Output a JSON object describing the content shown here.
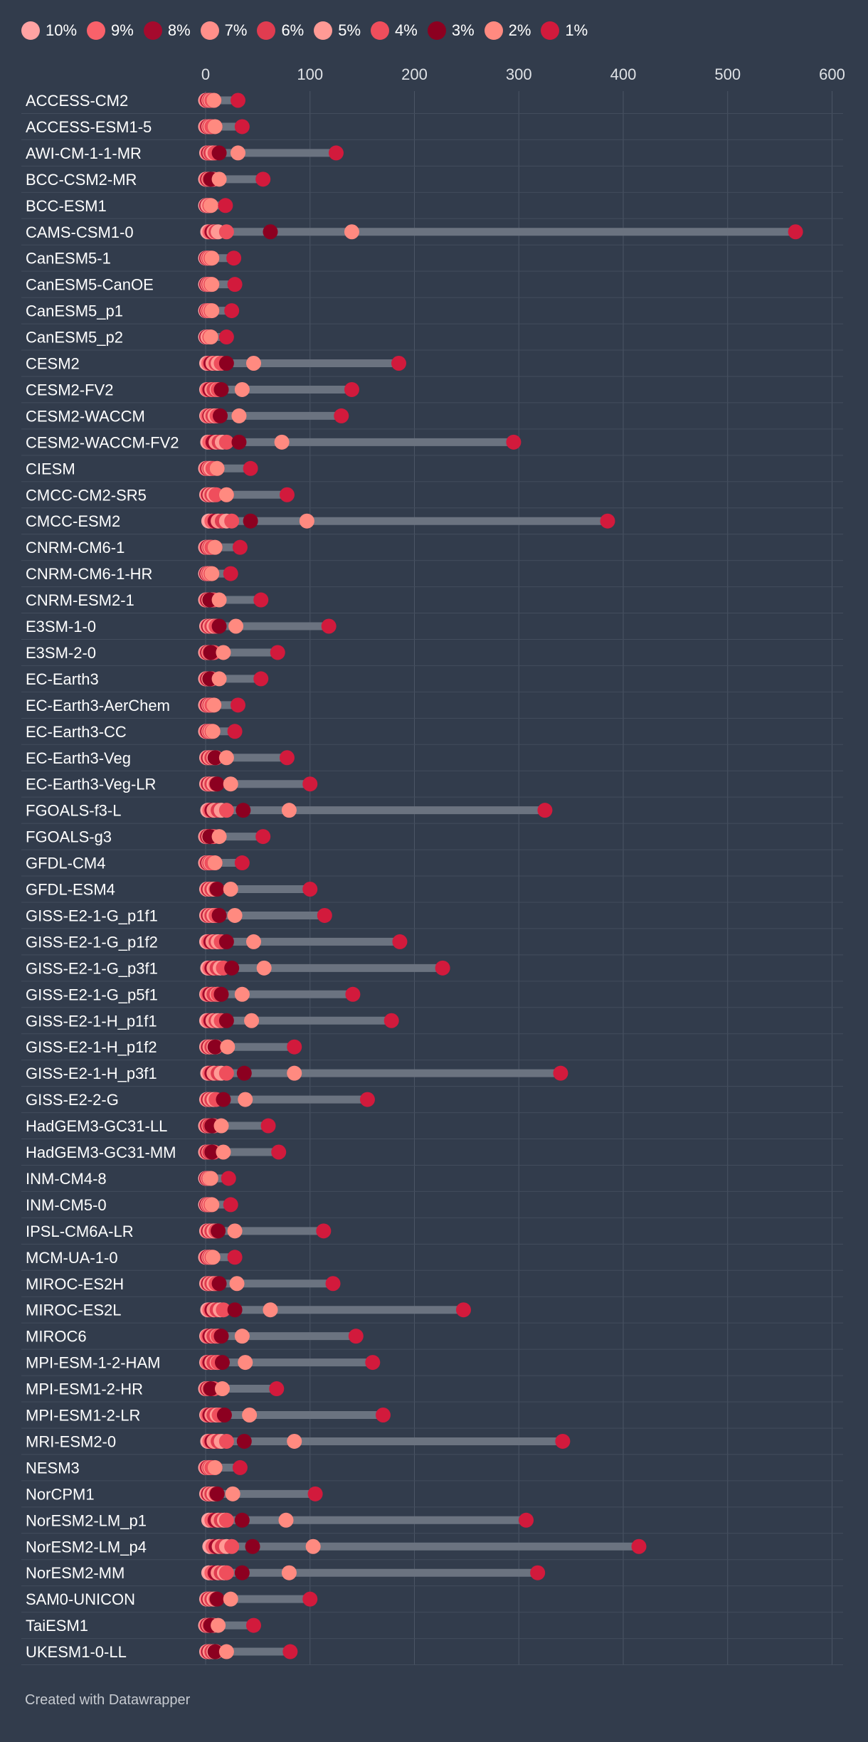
{
  "chart_data": {
    "type": "range-dot",
    "title": "",
    "xlabel": "",
    "ylabel": "",
    "xlim": [
      0,
      600
    ],
    "xticks": [
      0,
      100,
      200,
      300,
      400,
      500,
      600
    ],
    "grid": true,
    "legend": [
      {
        "label": "10%",
        "color": "#ffa3a3"
      },
      {
        "label": "9%",
        "color": "#f9616a"
      },
      {
        "label": "8%",
        "color": "#a50a2d"
      },
      {
        "label": "7%",
        "color": "#ff8f8a"
      },
      {
        "label": "6%",
        "color": "#e03c50"
      },
      {
        "label": "5%",
        "color": "#ff9a95"
      },
      {
        "label": "4%",
        "color": "#ef4e5c"
      },
      {
        "label": "3%",
        "color": "#8c0020"
      },
      {
        "label": "2%",
        "color": "#ff8a80"
      },
      {
        "label": "1%",
        "color": "#d21a3c"
      }
    ],
    "models": [
      {
        "name": "ACCESS-CM2",
        "values": [
          0,
          1,
          2,
          3,
          4,
          5,
          6,
          8,
          8,
          31
        ]
      },
      {
        "name": "ACCESS-ESM1-5",
        "values": [
          0,
          1,
          2,
          3,
          4,
          5,
          6,
          9,
          9,
          35
        ]
      },
      {
        "name": "AWI-CM-1-1-MR",
        "values": [
          1,
          2,
          3,
          4,
          5,
          7,
          9,
          13,
          31,
          125
        ]
      },
      {
        "name": "BCC-CSM2-MR",
        "values": [
          0,
          1,
          2,
          3,
          4,
          6,
          8,
          5,
          13,
          55
        ]
      },
      {
        "name": "BCC-ESM1",
        "values": [
          0,
          1,
          1,
          2,
          3,
          3,
          4,
          5,
          5,
          19
        ]
      },
      {
        "name": "CAMS-CSM1-0",
        "values": [
          2,
          4,
          6,
          8,
          10,
          12,
          20,
          62,
          140,
          565
        ]
      },
      {
        "name": "CanESM5-1",
        "values": [
          0,
          1,
          1,
          2,
          3,
          4,
          5,
          6,
          6,
          27
        ]
      },
      {
        "name": "CanESM5-CanOE",
        "values": [
          0,
          1,
          1,
          2,
          3,
          4,
          5,
          6,
          6,
          28
        ]
      },
      {
        "name": "CanESM5_p1",
        "values": [
          0,
          1,
          1,
          2,
          3,
          4,
          5,
          6,
          6,
          25
        ]
      },
      {
        "name": "CanESM5_p2",
        "values": [
          0,
          1,
          1,
          2,
          3,
          3,
          4,
          5,
          5,
          20
        ]
      },
      {
        "name": "CESM2",
        "values": [
          1,
          3,
          5,
          7,
          10,
          12,
          15,
          20,
          46,
          185
        ]
      },
      {
        "name": "CESM2-FV2",
        "values": [
          1,
          2,
          4,
          6,
          8,
          11,
          12,
          15,
          35,
          140
        ]
      },
      {
        "name": "CESM2-WACCM",
        "values": [
          1,
          2,
          4,
          5,
          7,
          9,
          11,
          14,
          32,
          130
        ]
      },
      {
        "name": "CESM2-WACCM-FV2",
        "values": [
          2,
          4,
          7,
          10,
          13,
          16,
          20,
          32,
          73,
          295
        ]
      },
      {
        "name": "CIESM",
        "values": [
          0,
          1,
          2,
          3,
          4,
          5,
          7,
          11,
          11,
          43
        ]
      },
      {
        "name": "CMCC-CM2-SR5",
        "values": [
          1,
          2,
          3,
          4,
          6,
          8,
          10,
          20,
          20,
          78
        ]
      },
      {
        "name": "CMCC-ESM2",
        "values": [
          3,
          6,
          9,
          12,
          16,
          20,
          25,
          43,
          97,
          385
        ]
      },
      {
        "name": "CNRM-CM6-1",
        "values": [
          0,
          1,
          2,
          3,
          4,
          5,
          6,
          9,
          9,
          33
        ]
      },
      {
        "name": "CNRM-CM6-1-HR",
        "values": [
          0,
          1,
          1,
          2,
          3,
          4,
          5,
          6,
          6,
          24
        ]
      },
      {
        "name": "CNRM-ESM2-1",
        "values": [
          0,
          1,
          2,
          3,
          4,
          6,
          8,
          4,
          13,
          53
        ]
      },
      {
        "name": "E3SM-1-0",
        "values": [
          1,
          2,
          3,
          4,
          6,
          8,
          10,
          13,
          29,
          118
        ]
      },
      {
        "name": "E3SM-2-0",
        "values": [
          0,
          1,
          2,
          3,
          4,
          6,
          8,
          5,
          17,
          69
        ]
      },
      {
        "name": "EC-Earth3",
        "values": [
          0,
          1,
          2,
          3,
          4,
          5,
          6,
          4,
          13,
          53
        ]
      },
      {
        "name": "EC-Earth3-AerChem",
        "values": [
          0,
          1,
          2,
          3,
          4,
          5,
          6,
          8,
          8,
          31
        ]
      },
      {
        "name": "EC-Earth3-CC",
        "values": [
          0,
          1,
          2,
          3,
          4,
          5,
          6,
          7,
          7,
          28
        ]
      },
      {
        "name": "EC-Earth3-Veg",
        "values": [
          1,
          2,
          3,
          4,
          6,
          8,
          10,
          9,
          20,
          78
        ]
      },
      {
        "name": "EC-Earth3-Veg-LR",
        "values": [
          1,
          2,
          3,
          4,
          6,
          8,
          10,
          11,
          24,
          100
        ]
      },
      {
        "name": "FGOALS-f3-L",
        "values": [
          2,
          4,
          6,
          8,
          12,
          15,
          20,
          36,
          80,
          325
        ]
      },
      {
        "name": "FGOALS-g3",
        "values": [
          0,
          1,
          2,
          3,
          4,
          6,
          8,
          4,
          13,
          55
        ]
      },
      {
        "name": "GFDL-CM4",
        "values": [
          0,
          1,
          2,
          3,
          4,
          5,
          6,
          9,
          9,
          35
        ]
      },
      {
        "name": "GFDL-ESM4",
        "values": [
          1,
          2,
          3,
          4,
          6,
          8,
          10,
          11,
          24,
          100
        ]
      },
      {
        "name": "GISS-E2-1-G_p1f1",
        "values": [
          1,
          2,
          3,
          4,
          6,
          8,
          10,
          13,
          28,
          114
        ]
      },
      {
        "name": "GISS-E2-1-G_p1f2",
        "values": [
          1,
          3,
          5,
          7,
          10,
          12,
          15,
          20,
          46,
          186
        ]
      },
      {
        "name": "GISS-E2-1-G_p3f1",
        "values": [
          2,
          4,
          6,
          8,
          11,
          14,
          17,
          25,
          56,
          227
        ]
      },
      {
        "name": "GISS-E2-1-G_p5f1",
        "values": [
          1,
          2,
          4,
          6,
          8,
          11,
          12,
          15,
          35,
          141
        ]
      },
      {
        "name": "GISS-E2-1-H_p1f1",
        "values": [
          1,
          3,
          5,
          7,
          10,
          12,
          15,
          20,
          44,
          178
        ]
      },
      {
        "name": "GISS-E2-1-H_p1f2",
        "values": [
          1,
          2,
          3,
          4,
          6,
          8,
          10,
          9,
          21,
          85
        ]
      },
      {
        "name": "GISS-E2-1-H_p3f1",
        "values": [
          2,
          4,
          6,
          8,
          12,
          15,
          20,
          37,
          85,
          340
        ]
      },
      {
        "name": "GISS-E2-2-G",
        "values": [
          1,
          2,
          3,
          4,
          6,
          8,
          10,
          17,
          38,
          155
        ]
      },
      {
        "name": "HadGEM3-GC31-LL",
        "values": [
          0,
          1,
          2,
          3,
          4,
          6,
          8,
          6,
          15,
          60
        ]
      },
      {
        "name": "HadGEM3-GC31-MM",
        "values": [
          0,
          1,
          2,
          3,
          4,
          6,
          8,
          6,
          17,
          70
        ]
      },
      {
        "name": "INM-CM4-8",
        "values": [
          0,
          1,
          1,
          2,
          3,
          4,
          5,
          5,
          5,
          22
        ]
      },
      {
        "name": "INM-CM5-0",
        "values": [
          0,
          1,
          1,
          2,
          3,
          4,
          5,
          6,
          6,
          24
        ]
      },
      {
        "name": "IPSL-CM6A-LR",
        "values": [
          1,
          2,
          3,
          4,
          6,
          8,
          10,
          12,
          28,
          113
        ]
      },
      {
        "name": "MCM-UA-1-0",
        "values": [
          0,
          1,
          2,
          3,
          4,
          5,
          6,
          7,
          7,
          28
        ]
      },
      {
        "name": "MIROC-ES2H",
        "values": [
          1,
          2,
          3,
          4,
          6,
          8,
          10,
          13,
          30,
          122
        ]
      },
      {
        "name": "MIROC-ES2L",
        "values": [
          2,
          4,
          6,
          8,
          11,
          14,
          17,
          28,
          62,
          247
        ]
      },
      {
        "name": "MIROC6",
        "values": [
          1,
          2,
          4,
          6,
          8,
          11,
          12,
          15,
          35,
          144
        ]
      },
      {
        "name": "MPI-ESM-1-2-HAM",
        "values": [
          1,
          2,
          4,
          6,
          8,
          11,
          12,
          16,
          38,
          160
        ]
      },
      {
        "name": "MPI-ESM1-2-HR",
        "values": [
          0,
          1,
          2,
          3,
          4,
          6,
          8,
          5,
          16,
          68
        ]
      },
      {
        "name": "MPI-ESM1-2-LR",
        "values": [
          1,
          2,
          4,
          6,
          8,
          11,
          13,
          18,
          42,
          170
        ]
      },
      {
        "name": "MRI-ESM2-0",
        "values": [
          2,
          4,
          6,
          8,
          12,
          15,
          20,
          37,
          85,
          342
        ]
      },
      {
        "name": "NESM3",
        "values": [
          0,
          1,
          2,
          3,
          4,
          5,
          6,
          9,
          9,
          33
        ]
      },
      {
        "name": "NorCPM1",
        "values": [
          1,
          2,
          3,
          4,
          6,
          8,
          10,
          11,
          26,
          105
        ]
      },
      {
        "name": "NorESM2-LM_p1",
        "values": [
          3,
          6,
          9,
          12,
          15,
          18,
          20,
          35,
          77,
          307
        ]
      },
      {
        "name": "NorESM2-LM_p4",
        "values": [
          4,
          7,
          10,
          13,
          16,
          20,
          25,
          45,
          103,
          415
        ]
      },
      {
        "name": "NorESM2-MM",
        "values": [
          3,
          6,
          9,
          12,
          15,
          18,
          20,
          35,
          80,
          318
        ]
      },
      {
        "name": "SAM0-UNICON",
        "values": [
          1,
          2,
          3,
          4,
          6,
          8,
          10,
          11,
          24,
          100
        ]
      },
      {
        "name": "TaiESM1",
        "values": [
          0,
          1,
          2,
          3,
          4,
          6,
          8,
          5,
          12,
          46
        ]
      },
      {
        "name": "UKESM1-0-LL",
        "values": [
          1,
          2,
          3,
          4,
          6,
          8,
          10,
          9,
          20,
          81
        ]
      }
    ]
  },
  "footer": {
    "credit": "Created with Datawrapper"
  }
}
